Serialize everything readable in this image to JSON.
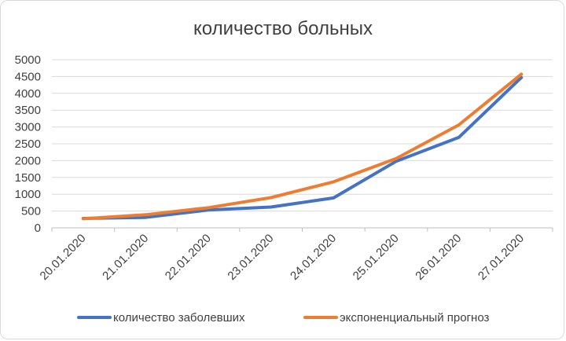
{
  "chart_data": {
    "type": "line",
    "title": "количество больных",
    "xlabel": "",
    "ylabel": "",
    "categories": [
      "20.01.2020",
      "21.01.2020",
      "22.01.2020",
      "23.01.2020",
      "24.01.2020",
      "25.01.2020",
      "26.01.2020",
      "27.01.2020"
    ],
    "ylim": [
      0,
      5000
    ],
    "yticks": [
      "0",
      "500",
      "1000",
      "1500",
      "2000",
      "2500",
      "3000",
      "3500",
      "4000",
      "4500",
      "5000"
    ],
    "grid": true,
    "legend_position": "bottom",
    "series": [
      {
        "name": "количество заболевших",
        "color": "#4472c4",
        "values": [
          280,
          310,
          530,
          620,
          890,
          1980,
          2690,
          4470
        ]
      },
      {
        "name": "экспоненциальный прогноз",
        "color": "#ed7d31",
        "values": [
          270,
          390,
          600,
          900,
          1370,
          2060,
          3060,
          4570
        ]
      }
    ]
  }
}
